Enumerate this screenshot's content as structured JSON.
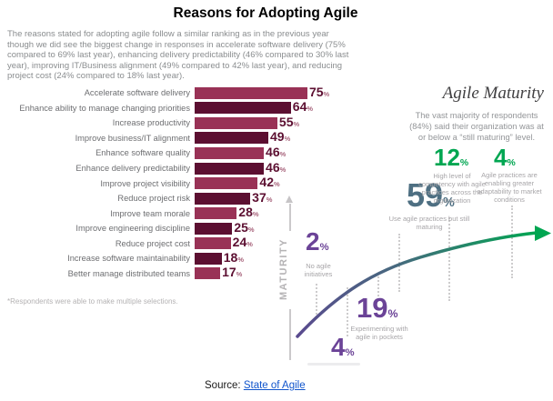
{
  "header": {
    "title": "Reasons for Adopting Agile"
  },
  "intro": "The reasons stated for adopting agile follow a similar ranking as in the previous year though we did see the biggest change in responses in accelerate software delivery (75% compared to 69% last year), enhancing delivery predictability (46% compared to 30% last year), improving IT/Business alignment (49% compared to 42% last year), and reducing project cost (24% compared to 18% last year).",
  "chart_data": [
    {
      "type": "bar",
      "title": "Reasons for Adopting Agile",
      "orientation": "horizontal",
      "unit": "%",
      "categories": [
        "Accelerate software delivery",
        "Enhance ability to manage changing priorities",
        "Increase productivity",
        "Improve business/IT alignment",
        "Enhance software quality",
        "Enhance delivery predictability",
        "Improve project visibility",
        "Reduce project risk",
        "Improve team morale",
        "Improve engineering discipline",
        "Reduce project cost",
        "Increase software maintainability",
        "Better manage distributed teams"
      ],
      "values": [
        75,
        64,
        55,
        49,
        46,
        46,
        42,
        37,
        28,
        25,
        24,
        18,
        17
      ],
      "xlim": [
        0,
        80
      ],
      "bar_colors_alternate": [
        "#993256",
        "#5c0f31"
      ],
      "footnote": "*Respondents were able to make multiple selections."
    },
    {
      "type": "line",
      "title": "Agile Maturity",
      "description": "The vast majority of respondents (84%) said their organization was at or below a “still maturing” level.",
      "ylabel": "MATURITY",
      "unit": "%",
      "points": [
        {
          "value": 2,
          "label": "No agile initiatives",
          "color": "#6b4397"
        },
        {
          "value": 4,
          "label": "",
          "color": "#6b4397"
        },
        {
          "value": 19,
          "label": "Experimenting with agile in pockets",
          "color": "#6b4397"
        },
        {
          "value": 59,
          "label": "Use agile practices but still maturing",
          "color": "#4e6f82"
        },
        {
          "value": 12,
          "label": "High level of competency with agile practices across the organization",
          "color": "#00a651"
        },
        {
          "value": 4,
          "label": "Agile practices are enabling greater adaptability to market conditions",
          "color": "#00a651"
        }
      ],
      "legend_position": "none",
      "grid": false
    }
  ],
  "source": {
    "prefix": "Source: ",
    "link_text": "State of Agile"
  },
  "colors": {
    "bar_rose": "#993256",
    "bar_dark": "#5c0f31",
    "bar_value_text": "#5c0f31",
    "green": "#00a651",
    "slate": "#4e6f82",
    "purple": "#6b4397",
    "label_gray": "#a7a5a8",
    "axis_gray": "#c6c4c6",
    "link_blue": "#1155cc"
  }
}
